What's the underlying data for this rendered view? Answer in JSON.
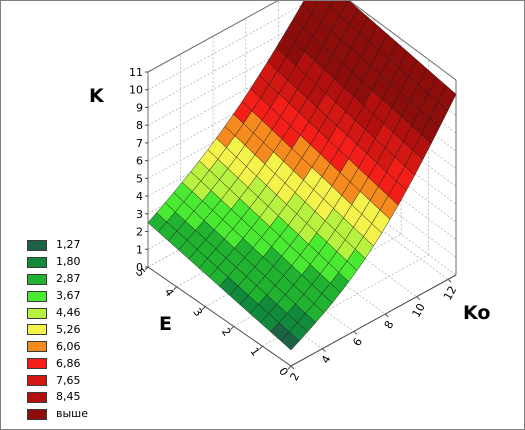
{
  "chart_data": {
    "type": "surface",
    "xlabel": "Ko",
    "ylabel": "E",
    "zlabel": "K",
    "x_ticks": [
      "2",
      "4",
      "6",
      "8",
      "10",
      "12"
    ],
    "y_ticks": [
      "0",
      "1",
      "2",
      "3",
      "4",
      "5"
    ],
    "z_ticks": [
      "0",
      "1",
      "2",
      "3",
      "4",
      "5",
      "6",
      "7",
      "8",
      "9",
      "10",
      "11"
    ],
    "xlim": [
      2,
      12.5
    ],
    "ylim": [
      0,
      5
    ],
    "zlim": [
      0,
      11
    ],
    "grid": true,
    "legend_position": "left",
    "legend": [
      {
        "label": "1,27",
        "color": "#1c6346"
      },
      {
        "label": "1,80",
        "color": "#128a3c"
      },
      {
        "label": "2,87",
        "color": "#22b232"
      },
      {
        "label": "3,67",
        "color": "#49ea31"
      },
      {
        "label": "4,46",
        "color": "#b7f240"
      },
      {
        "label": "5,26",
        "color": "#f3f34c"
      },
      {
        "label": "6,06",
        "color": "#f58a1f"
      },
      {
        "label": "6,86",
        "color": "#f41e19"
      },
      {
        "label": "7,65",
        "color": "#d31712"
      },
      {
        "label": "8,45",
        "color": "#b20f0e"
      },
      {
        "label": "выше",
        "color": "#8d0d0b"
      }
    ],
    "surface_corners": [
      {
        "Ko": 2,
        "E": 0,
        "K": 0.9
      },
      {
        "Ko": 2,
        "E": 5,
        "K": 2.5
      },
      {
        "Ko": 12.5,
        "E": 0,
        "K": 10.2
      },
      {
        "Ko": 12.5,
        "E": 5,
        "K": 11.2
      }
    ]
  }
}
